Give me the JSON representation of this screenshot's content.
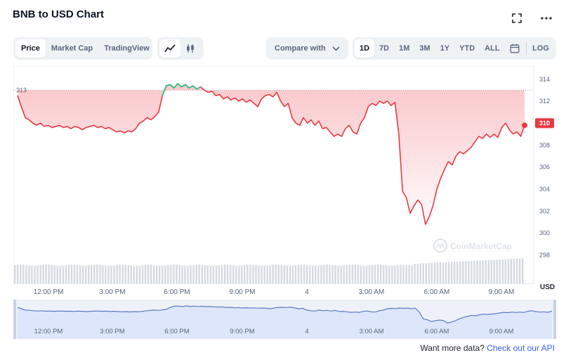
{
  "header": {
    "title": "BNB to USD Chart",
    "fullscreen_icon": "expand-icon",
    "more_icon": "more-dots-icon"
  },
  "view_tabs": [
    {
      "label": "Price",
      "active": true
    },
    {
      "label": "Market Cap",
      "active": false
    },
    {
      "label": "TradingView",
      "active": false
    }
  ],
  "chart_type": {
    "line_icon": "line-chart-icon",
    "candle_icon": "candlestick-icon"
  },
  "compare": {
    "label": "Compare with",
    "icon": "chevron-down-icon"
  },
  "ranges": [
    {
      "label": "1D",
      "active": true
    },
    {
      "label": "7D",
      "active": false
    },
    {
      "label": "1M",
      "active": false
    },
    {
      "label": "3M",
      "active": false
    },
    {
      "label": "1Y",
      "active": false
    },
    {
      "label": "YTD",
      "active": false
    },
    {
      "label": "ALL",
      "active": false
    }
  ],
  "calendar_icon": "calendar-icon",
  "log_label": "LOG",
  "watermark": "CoinMarketCap",
  "footer": {
    "text": "Want more data?",
    "link": "Check out our API"
  },
  "chart_data": {
    "type": "line",
    "currency_label": "USD",
    "reference_line": {
      "value": 313,
      "label": "313"
    },
    "current_price": {
      "value": 310,
      "label": "310"
    },
    "y_ticks": [
      298,
      300,
      302,
      304,
      306,
      308,
      310,
      312,
      314
    ],
    "ylim": [
      297.2,
      315.2
    ],
    "x_ticks": [
      "12:00 PM",
      "3:00 PM",
      "6:00 PM",
      "9:00 PM",
      "4",
      "3:00 AM",
      "6:00 AM",
      "9:00 AM"
    ],
    "navigator_ticks": [
      "12:00 PM",
      "3:00 PM",
      "6:00 PM",
      "9:00 PM",
      "4",
      "3:00 AM",
      "6:00 AM",
      "9:00 AM"
    ],
    "colors": {
      "down": "#ea3943",
      "up": "#16c784",
      "volume": "#d4d8e0",
      "navigator_fill": "#dde6fb",
      "navigator_line": "#5a7bc4"
    },
    "series": [
      {
        "values": [
          312.5,
          311.5,
          310.5,
          310.3,
          310.0,
          309.8,
          310.0,
          309.7,
          309.8,
          309.6,
          309.7,
          309.8,
          309.6,
          309.7,
          309.5,
          309.7,
          309.6,
          309.4,
          309.6,
          309.7,
          309.8,
          309.6,
          309.7,
          309.5,
          309.6,
          309.4,
          309.2,
          309.3,
          309.1,
          309.3,
          309.2,
          309.5,
          310.0,
          310.2,
          310.5,
          310.3,
          310.6,
          311.0,
          312.5,
          313.4,
          313.5,
          313.2,
          313.6,
          313.3,
          313.5,
          313.2,
          313.4,
          313.1,
          313.3,
          313.0,
          312.8,
          312.9,
          312.5,
          312.6,
          312.2,
          312.4,
          312.1,
          312.3,
          312.0,
          312.2,
          311.9,
          312.1,
          311.8,
          311.5,
          312.2,
          312.5,
          312.6,
          312.4,
          312.8,
          312.0,
          311.5,
          311.8,
          310.5,
          310.0,
          309.8,
          310.5,
          310.0,
          310.3,
          309.8,
          310.2,
          309.5,
          309.6,
          309.2,
          308.8,
          309.0,
          308.8,
          309.5,
          309.8,
          309.2,
          309.0,
          310.0,
          310.5,
          311.5,
          311.8,
          311.6,
          312.0,
          311.8,
          312.0,
          311.6,
          311.9,
          309.0,
          303.8,
          303.2,
          301.8,
          302.5,
          303.0,
          302.6,
          300.8,
          301.5,
          302.5,
          304.0,
          305.0,
          305.8,
          306.5,
          306.2,
          307.0,
          307.4,
          307.2,
          307.5,
          307.8,
          308.3,
          308.8,
          308.6,
          309.0,
          308.7,
          309.0,
          308.7,
          309.6,
          310.0,
          309.4,
          309.0,
          309.2,
          308.8,
          309.8
        ]
      }
    ],
    "green_range": [
      38,
      48
    ]
  }
}
